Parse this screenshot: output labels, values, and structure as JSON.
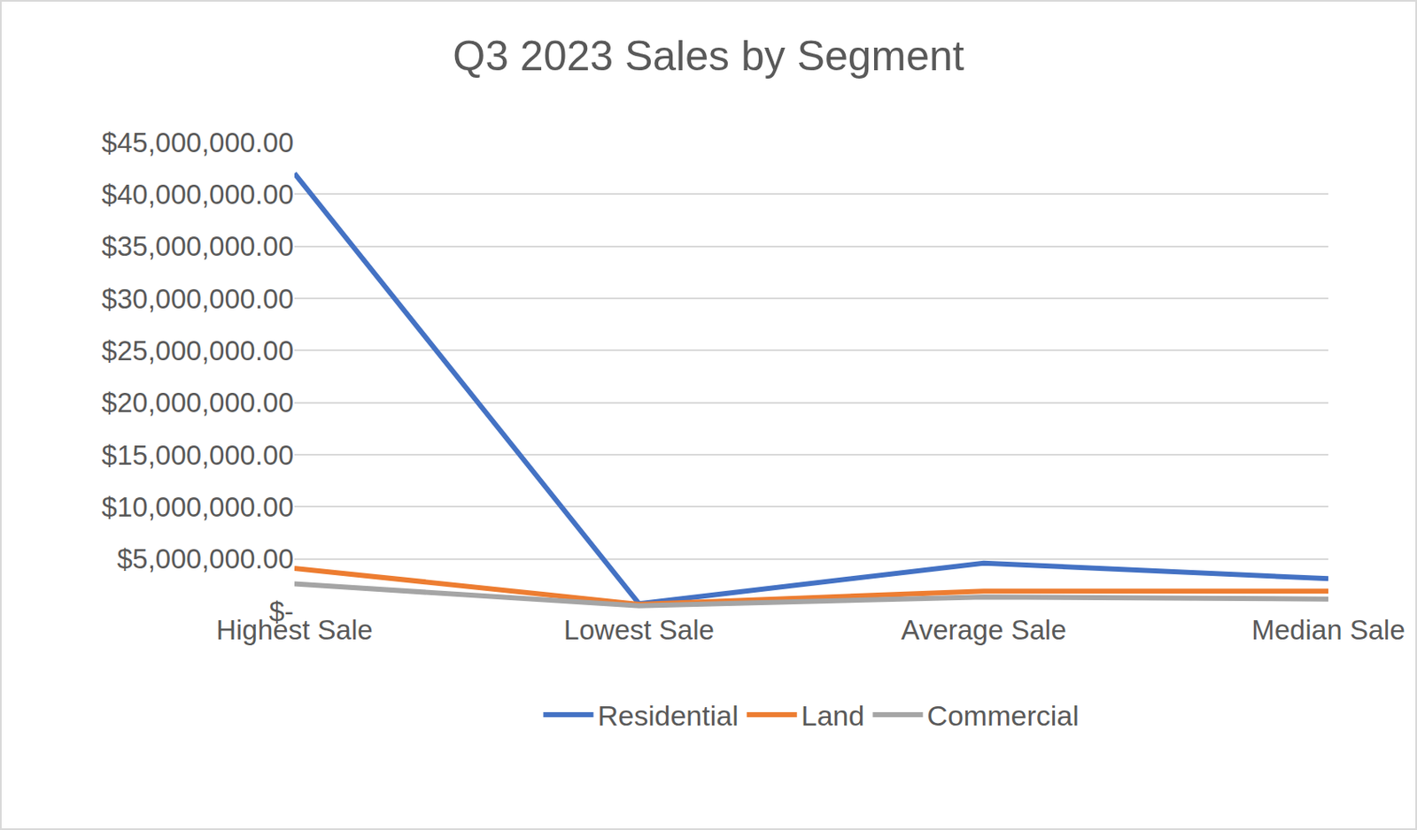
{
  "chart_data": {
    "type": "line",
    "title": "Q3 2023 Sales by Segment",
    "categories": [
      "Highest Sale",
      "Lowest Sale",
      "Average Sale",
      "Median Sale"
    ],
    "series": [
      {
        "name": "Residential",
        "color": "#4472c4",
        "values": [
          42000000,
          700000,
          4600000,
          3100000
        ]
      },
      {
        "name": "Land",
        "color": "#ed7d31",
        "values": [
          4100000,
          650000,
          1900000,
          1900000
        ]
      },
      {
        "name": "Commercial",
        "color": "#a5a5a5",
        "values": [
          2600000,
          500000,
          1350000,
          1150000
        ]
      }
    ],
    "ylim": [
      0,
      45000000
    ],
    "yticks": [
      {
        "value": 0,
        "label": "$-"
      },
      {
        "value": 5000000,
        "label": "$5,000,000.00"
      },
      {
        "value": 10000000,
        "label": "$10,000,000.00"
      },
      {
        "value": 15000000,
        "label": "$15,000,000.00"
      },
      {
        "value": 20000000,
        "label": "$20,000,000.00"
      },
      {
        "value": 25000000,
        "label": "$25,000,000.00"
      },
      {
        "value": 30000000,
        "label": "$30,000,000.00"
      },
      {
        "value": 35000000,
        "label": "$35,000,000.00"
      },
      {
        "value": 40000000,
        "label": "$40,000,000.00"
      },
      {
        "value": 45000000,
        "label": "$45,000,000.00"
      }
    ],
    "grid": true,
    "legend": "bottom"
  }
}
